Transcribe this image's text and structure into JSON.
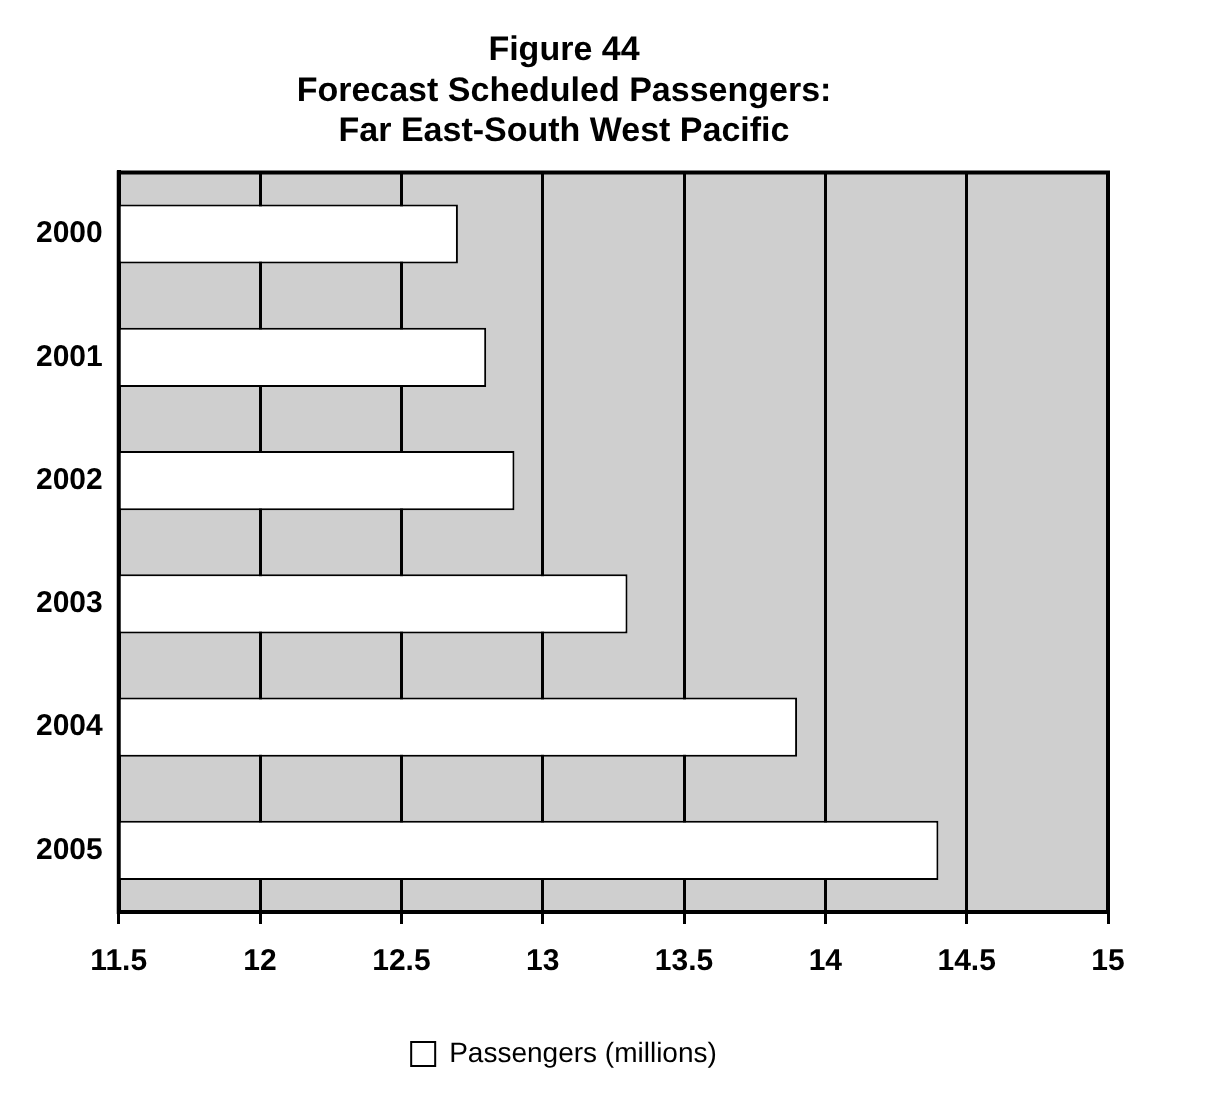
{
  "chart_data": {
    "type": "bar",
    "orientation": "horizontal",
    "title": "Figure 44\nForecast Scheduled Passengers:\nFar East-South West Pacific",
    "categories": [
      "2000",
      "2001",
      "2002",
      "2003",
      "2004",
      "2005"
    ],
    "series": [
      {
        "name": "Passengers (millions)",
        "color": "#ffffff",
        "values": [
          12.7,
          12.8,
          12.9,
          13.3,
          13.9,
          14.4
        ]
      }
    ],
    "xlim": [
      11.5,
      15
    ],
    "xticks": [
      11.5,
      12,
      12.5,
      13,
      13.5,
      14,
      14.5,
      15
    ],
    "grid": "x",
    "legend": "bottom"
  }
}
